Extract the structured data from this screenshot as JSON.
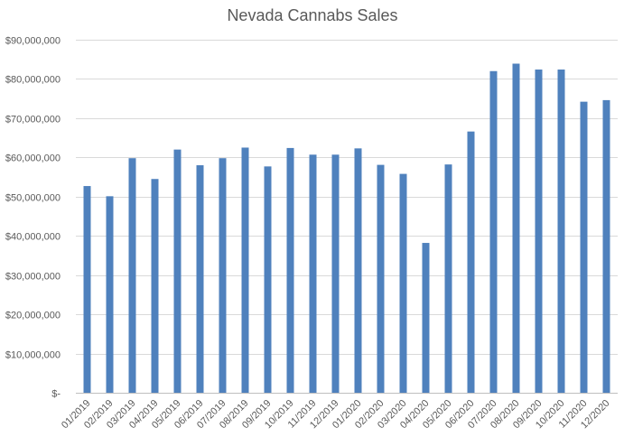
{
  "chart_data": {
    "type": "bar",
    "title": "Nevada Cannabs Sales",
    "xlabel": "",
    "ylabel": "",
    "ylim": [
      0,
      90000000
    ],
    "yticks": [
      0,
      10000000,
      20000000,
      30000000,
      40000000,
      50000000,
      60000000,
      70000000,
      80000000,
      90000000
    ],
    "ytick_labels": [
      "$-",
      "$10,000,000",
      "$20,000,000",
      "$30,000,000",
      "$40,000,000",
      "$50,000,000",
      "$60,000,000",
      "$70,000,000",
      "$80,000,000",
      "$90,000,000"
    ],
    "categories": [
      "01/2019",
      "02/2019",
      "03/2019",
      "04/2019",
      "05/2019",
      "06/2019",
      "07/2019",
      "08/2019",
      "09/2019",
      "10/2019",
      "11/2019",
      "12/2019",
      "01/2020",
      "02/2020",
      "03/2020",
      "04/2020",
      "05/2020",
      "06/2020",
      "07/2020",
      "08/2020",
      "09/2020",
      "10/2020",
      "11/2020",
      "12/2020"
    ],
    "values": [
      52700000,
      50100000,
      59800000,
      54500000,
      62000000,
      58000000,
      59800000,
      62500000,
      57700000,
      62400000,
      60700000,
      60700000,
      62300000,
      58100000,
      55800000,
      38200000,
      58200000,
      66600000,
      82000000,
      83900000,
      82400000,
      82400000,
      74200000,
      74600000
    ],
    "grid": true,
    "legend": "none",
    "bar_color": "#4f81bd"
  }
}
